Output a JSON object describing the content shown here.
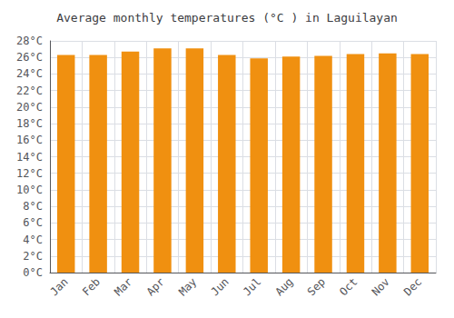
{
  "chart_data": {
    "type": "bar",
    "title": "Average monthly temperatures (°C ) in Laguilayan",
    "categories": [
      "Jan",
      "Feb",
      "Mar",
      "Apr",
      "May",
      "Jun",
      "Jul",
      "Aug",
      "Sep",
      "Oct",
      "Nov",
      "Dec"
    ],
    "values": [
      26.3,
      26.3,
      26.7,
      27.1,
      27.1,
      26.3,
      25.9,
      26.1,
      26.2,
      26.4,
      26.5,
      26.4
    ],
    "color": "#F09010",
    "ylim": [
      0,
      28
    ],
    "yticks": [
      {
        "value": 0,
        "label": "0°C"
      },
      {
        "value": 2,
        "label": "2°C"
      },
      {
        "value": 4,
        "label": "4°C"
      },
      {
        "value": 6,
        "label": "6°C"
      },
      {
        "value": 8,
        "label": "8°C"
      },
      {
        "value": 10,
        "label": "10°C"
      },
      {
        "value": 12,
        "label": "12°C"
      },
      {
        "value": 14,
        "label": "14°C"
      },
      {
        "value": 16,
        "label": "16°C"
      },
      {
        "value": 18,
        "label": "18°C"
      },
      {
        "value": 20,
        "label": "20°C"
      },
      {
        "value": 22,
        "label": "22°C"
      },
      {
        "value": 24,
        "label": "24°C"
      },
      {
        "value": 26,
        "label": "26°C"
      },
      {
        "value": 28,
        "label": "28°C"
      }
    ],
    "grid": true
  }
}
